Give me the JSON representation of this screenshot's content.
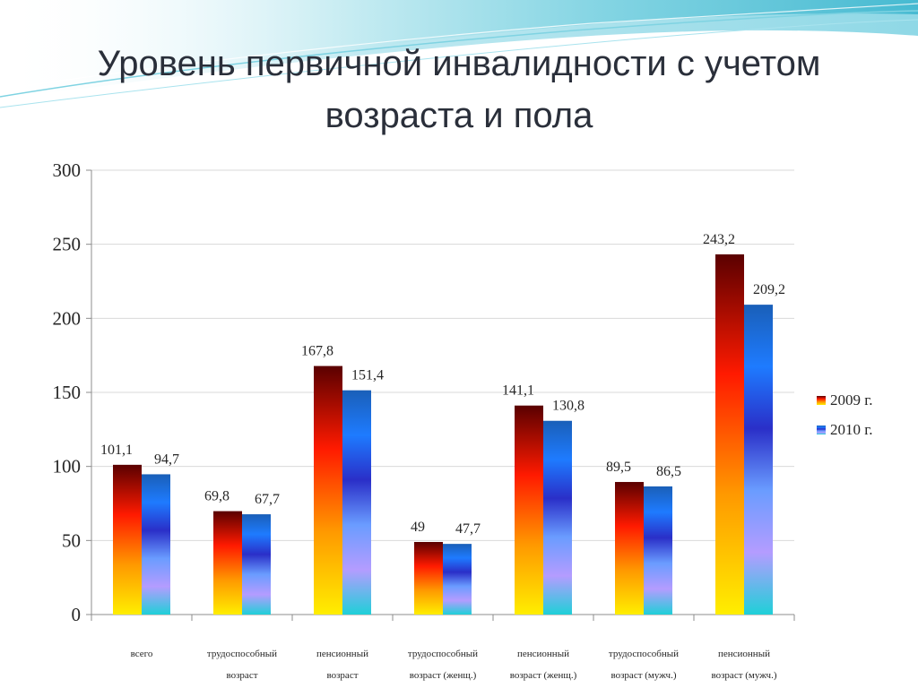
{
  "title": "Уровень первичной инвалидности  с учетом возраста и пола",
  "colors": {
    "series_2009": [
      "#5a0000",
      "#ff1a00",
      "#ff9900",
      "#ffee00"
    ],
    "series_2010": [
      "#1a5fb8",
      "#1e7bff",
      "#2a2fc8",
      "#6a9cff",
      "#b49cff",
      "#1fd0d8"
    ],
    "grid": "#d9d9d9",
    "axis": "#8c8c8c",
    "text": "#262626"
  },
  "chart_data": {
    "type": "bar",
    "categories": [
      [
        "всего"
      ],
      [
        "трудоспособный",
        "возраст"
      ],
      [
        "пенсионный",
        "возраст"
      ],
      [
        "трудоспособный",
        "возраст (женщ.)"
      ],
      [
        "пенсионный",
        "возраст (женщ.)"
      ],
      [
        "трудоспособный",
        "возраст (мужч.)"
      ],
      [
        "пенсионный",
        "возраст (мужч.)"
      ]
    ],
    "series": [
      {
        "name": "2009 г.",
        "values": [
          101.1,
          69.8,
          167.8,
          49,
          141.1,
          89.5,
          243.2
        ],
        "labels": [
          "101,1",
          "69,8",
          "167,8",
          "49",
          "141,1",
          "89,5",
          "243,2"
        ]
      },
      {
        "name": "2010 г.",
        "values": [
          94.7,
          67.7,
          151.4,
          47.7,
          130.8,
          86.5,
          209.2
        ],
        "labels": [
          "94,7",
          "67,7",
          "151,4",
          "47,7",
          "130,8",
          "86,5",
          "209,2"
        ]
      }
    ],
    "ylim": [
      0,
      300
    ],
    "yticks": [
      0,
      50,
      100,
      150,
      200,
      250,
      300
    ],
    "grid": true,
    "legend": "right"
  }
}
